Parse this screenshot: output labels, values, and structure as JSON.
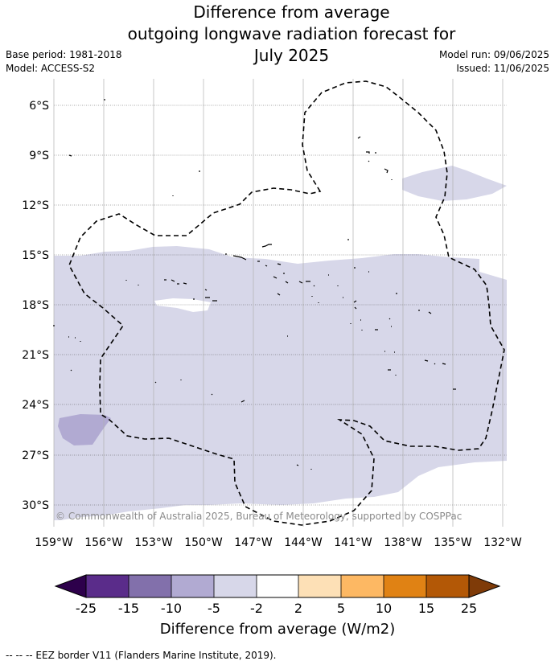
{
  "title": {
    "line1": "Difference from average",
    "line2": "outgoing longwave radiation forecast for",
    "line3": "July 2025"
  },
  "meta": {
    "base_period": "Base period: 1981-2018",
    "model": "Model: ACCESS-S2",
    "model_run": "Model run: 09/06/2025",
    "issued": "Issued: 11/06/2025"
  },
  "map": {
    "copyright": "© Commonwealth of Australia 2025, Bureau of Meteorology, supported by COSPPac",
    "lat_labels": [
      "6°S",
      "9°S",
      "12°S",
      "15°S",
      "18°S",
      "21°S",
      "24°S",
      "27°S",
      "30°S"
    ],
    "lon_labels": [
      "159°W",
      "156°W",
      "153°W",
      "150°W",
      "147°W",
      "144°W",
      "141°W",
      "138°W",
      "135°W",
      "132°W"
    ],
    "colors": {
      "neg_25": "#5a2c8a",
      "neg_15": "#8270ab",
      "neg_10": "#b1aad2",
      "neg_5": "#d7d7e9",
      "neutral": "#ffffff",
      "pos_2": "#fde0b6",
      "pos_5": "#fdb863",
      "pos_10": "#e08214",
      "pos_15": "#b35806",
      "over": "#7f3b08",
      "under": "#2d004b"
    }
  },
  "colorbar": {
    "labels": [
      "-25",
      "-15",
      "-10",
      "-5",
      "-2",
      "2",
      "5",
      "10",
      "15",
      "25"
    ],
    "title": "Difference from average (W/m2)"
  },
  "footer": "-- -- -- EEZ border V11 (Flanders Marine Institute, 2019)."
}
